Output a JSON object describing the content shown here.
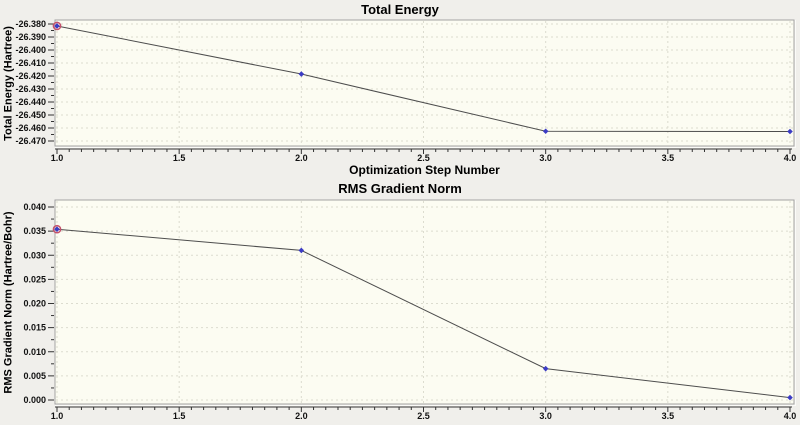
{
  "page": {
    "background": "#f0efeb"
  },
  "chart_data": [
    {
      "type": "line",
      "title": "Total Energy",
      "ylabel": "Total Energy (Hartree)",
      "xlabel": "Optimization Step Number",
      "x": [
        1.0,
        2.0,
        3.0,
        4.0
      ],
      "y": [
        -26.3815,
        -26.4185,
        -26.4625,
        -26.4627
      ],
      "xlim": [
        1.0,
        4.0
      ],
      "ylim": [
        -26.47,
        -26.38
      ],
      "ytick_step": 0.01,
      "ytick_decimals": 3,
      "xticks": [
        "1.0",
        "1.5",
        "2.0",
        "2.5",
        "3.0",
        "3.5",
        "4.0"
      ],
      "xtick_step": 0.5,
      "xtick_minor_step": 0.05,
      "xtick_decimals": 1,
      "grid": true,
      "legend": "none",
      "colors": {
        "line": "#4d4d4d",
        "marker": "#3b3bc4",
        "first_point_ring": "#c4506a",
        "plot_bg": "#fcfcf2",
        "grid": "#dcdccf",
        "frame": "#a3a3a3",
        "axis": "#333333"
      }
    },
    {
      "type": "line",
      "title": "RMS Gradient Norm",
      "ylabel": "RMS Gradient Norm (Hartree/Bohr)",
      "xlabel": "",
      "x": [
        1.0,
        2.0,
        3.0,
        4.0
      ],
      "y": [
        0.0354,
        0.031,
        0.0065,
        0.0005
      ],
      "xlim": [
        1.0,
        4.0
      ],
      "ylim": [
        0.0,
        0.04
      ],
      "ytick_step": 0.005,
      "ytick_decimals": 3,
      "xticks": [
        "1.0",
        "1.5",
        "2.0",
        "2.5",
        "3.0",
        "3.5",
        "4.0"
      ],
      "xtick_step": 0.5,
      "xtick_minor_step": 0.05,
      "xtick_decimals": 1,
      "grid": true,
      "legend": "none",
      "colors": {
        "line": "#4d4d4d",
        "marker": "#3b3bc4",
        "first_point_ring": "#c4506a",
        "plot_bg": "#fcfcf2",
        "grid": "#dcdccf",
        "frame": "#a3a3a3",
        "axis": "#333333"
      }
    }
  ]
}
